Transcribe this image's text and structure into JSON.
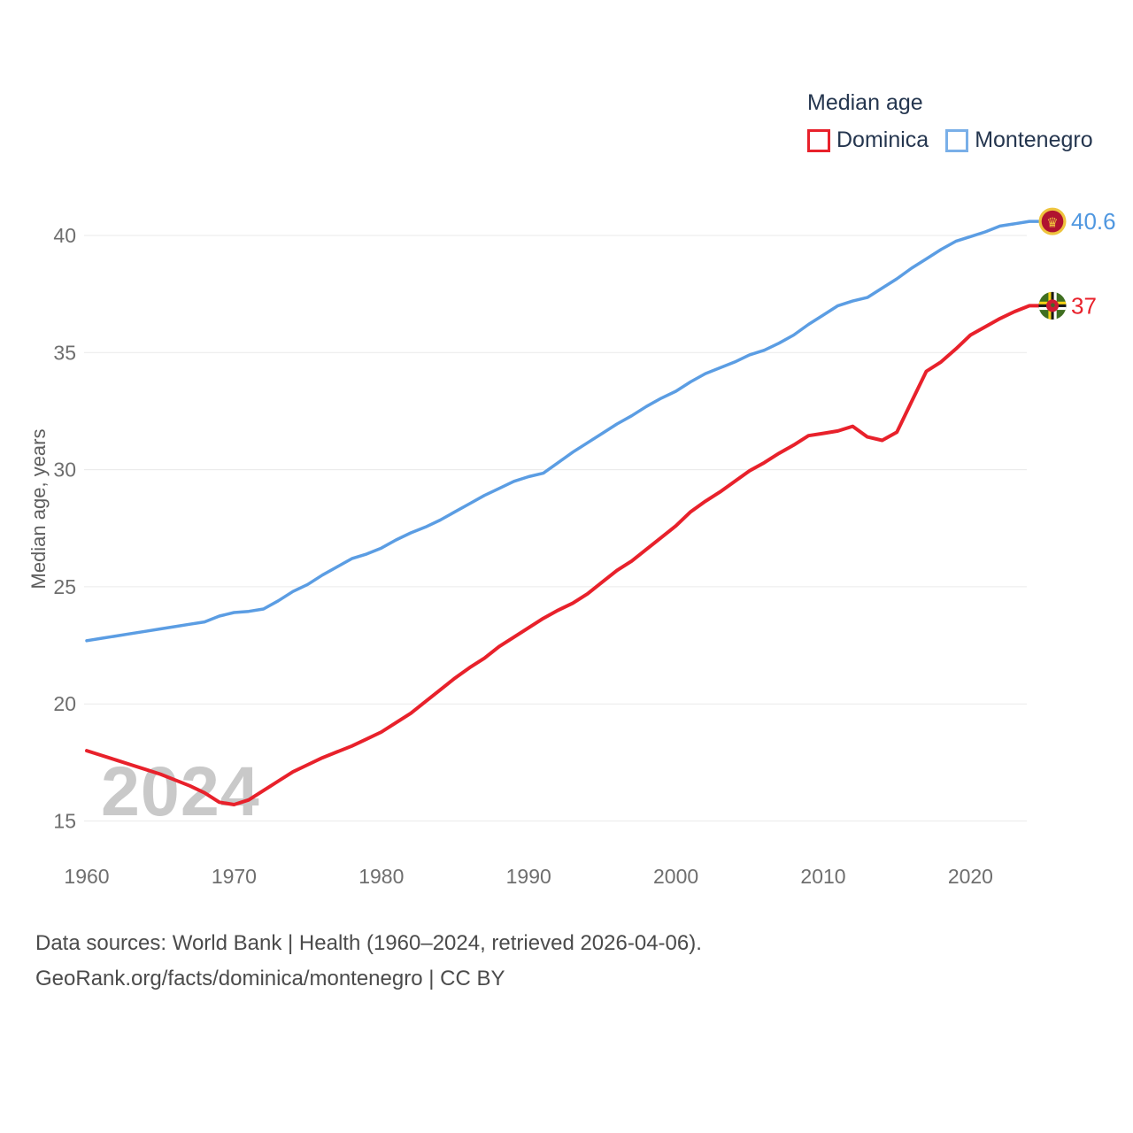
{
  "legend": {
    "title": "Median age",
    "series": [
      {
        "label": "Dominica",
        "color": "#e8212b"
      },
      {
        "label": "Montenegro",
        "color": "#79afe8"
      }
    ]
  },
  "y_axis": {
    "title": "Median age, years",
    "ticks": [
      15,
      20,
      25,
      30,
      35,
      40
    ]
  },
  "x_axis": {
    "ticks": [
      1960,
      1970,
      1980,
      1990,
      2000,
      2010,
      2020
    ]
  },
  "end_labels": {
    "dominica": "37",
    "montenegro": "40.6"
  },
  "watermark": "2024",
  "footer": {
    "line1": "Data sources: World Bank | Health (1960–2024, retrieved 2026-04-06).",
    "line2": "GeoRank.org/facts/dominica/montenegro | CC BY"
  },
  "chart_data": {
    "type": "line",
    "title": "Median age",
    "ylabel": "Median age, years",
    "xlim": [
      1960,
      2024
    ],
    "ylim": [
      15,
      40.6
    ],
    "grid": "horizontal",
    "legend_position": "top-right",
    "x": [
      1960,
      1961,
      1962,
      1963,
      1964,
      1965,
      1966,
      1967,
      1968,
      1969,
      1970,
      1971,
      1972,
      1973,
      1974,
      1975,
      1976,
      1977,
      1978,
      1979,
      1980,
      1981,
      1982,
      1983,
      1984,
      1985,
      1986,
      1987,
      1988,
      1989,
      1990,
      1991,
      1992,
      1993,
      1994,
      1995,
      1996,
      1997,
      1998,
      1999,
      2000,
      2001,
      2002,
      2003,
      2004,
      2005,
      2006,
      2007,
      2008,
      2009,
      2010,
      2011,
      2012,
      2013,
      2014,
      2015,
      2016,
      2017,
      2018,
      2019,
      2020,
      2021,
      2022,
      2023,
      2024
    ],
    "series": [
      {
        "name": "Dominica",
        "color": "#e8212b",
        "end_label": "37",
        "values": [
          18.0,
          17.8,
          17.6,
          17.4,
          17.2,
          17.0,
          16.75,
          16.5,
          16.2,
          15.8,
          15.7,
          15.9,
          16.3,
          16.7,
          17.1,
          17.4,
          17.7,
          17.95,
          18.2,
          18.5,
          18.8,
          19.2,
          19.6,
          20.1,
          20.6,
          21.1,
          21.55,
          21.95,
          22.45,
          22.85,
          23.25,
          23.65,
          24.0,
          24.3,
          24.7,
          25.2,
          25.7,
          26.1,
          26.6,
          27.1,
          27.6,
          28.2,
          28.65,
          29.05,
          29.5,
          29.95,
          30.3,
          30.7,
          31.05,
          31.45,
          31.55,
          31.65,
          31.85,
          31.4,
          31.25,
          31.6,
          32.9,
          34.2,
          34.6,
          35.15,
          35.75,
          36.1,
          36.45,
          36.75,
          37.0
        ]
      },
      {
        "name": "Montenegro",
        "color": "#5b9de3",
        "end_label": "40.6",
        "values": [
          22.7,
          22.8,
          22.9,
          23.0,
          23.1,
          23.2,
          23.3,
          23.4,
          23.5,
          23.75,
          23.9,
          23.95,
          24.05,
          24.4,
          24.8,
          25.1,
          25.5,
          25.85,
          26.2,
          26.4,
          26.65,
          27.0,
          27.3,
          27.55,
          27.85,
          28.2,
          28.55,
          28.9,
          29.2,
          29.5,
          29.7,
          29.85,
          30.3,
          30.75,
          31.15,
          31.55,
          31.95,
          32.3,
          32.7,
          33.05,
          33.35,
          33.75,
          34.1,
          34.35,
          34.6,
          34.9,
          35.1,
          35.4,
          35.75,
          36.2,
          36.6,
          37.0,
          37.2,
          37.35,
          37.75,
          38.15,
          38.6,
          39.0,
          39.4,
          39.75,
          39.95,
          40.15,
          40.4,
          40.5,
          40.6
        ]
      }
    ]
  }
}
